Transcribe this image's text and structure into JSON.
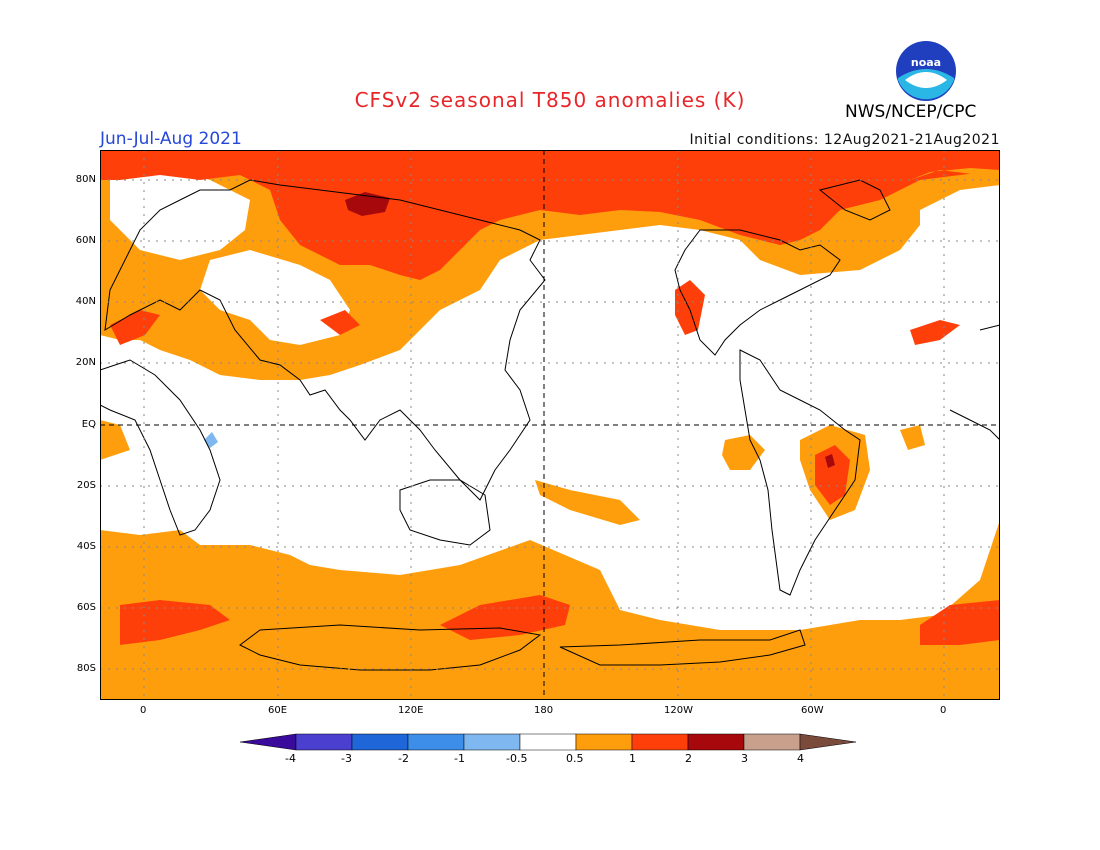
{
  "header": {
    "title": "CFSv2 seasonal T850 anomalies (K)",
    "season": "Jun-Jul-Aug 2021",
    "initial_conditions": "Initial conditions: 12Aug2021-21Aug2021",
    "agency": "NWS/NCEP/CPC",
    "logo_text": "noaa"
  },
  "axes": {
    "lat_labels": [
      "80N",
      "60N",
      "40N",
      "20N",
      "EQ",
      "20S",
      "40S",
      "60S",
      "80S"
    ],
    "lon_labels": [
      "0",
      "60E",
      "120E",
      "180",
      "120W",
      "60W",
      "0"
    ]
  },
  "colorbar": {
    "ticks": [
      "-4",
      "-3",
      "-2",
      "-1",
      "-0.5",
      "0.5",
      "1",
      "2",
      "3",
      "4"
    ],
    "colors": [
      "#3a0a9c",
      "#4b3fd0",
      "#1f66d8",
      "#3d8ee8",
      "#7fb8f0",
      "#ffffff",
      "#ff9e0c",
      "#ff3f0a",
      "#a6080b",
      "#c9a08c",
      "#7a4a3a"
    ]
  },
  "map_colors": {
    "band_0_5_1": "#ff9e0c",
    "band_1_2": "#ff3f0a",
    "band_2_3": "#a6080b",
    "neg_0_5_1": "#7fb8f0",
    "coast": "#000000"
  }
}
